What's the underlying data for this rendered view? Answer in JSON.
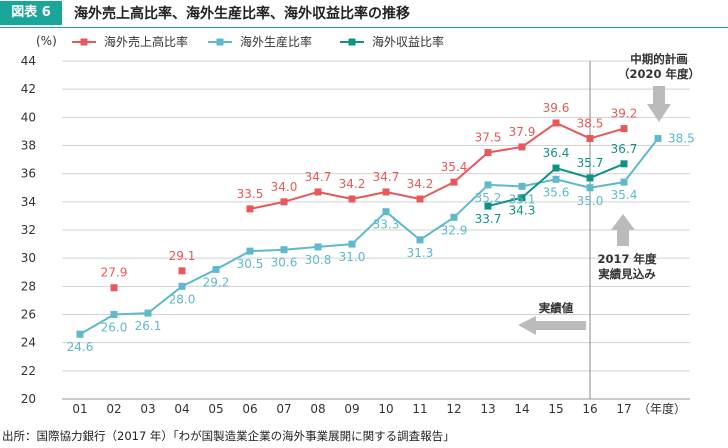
{
  "figure": {
    "badge": "図表 6",
    "title": "海外売上高比率、海外生産比率、海外収益比率の推移",
    "source": "出所：国際協力銀行（2017 年）「わが国製造業企業の海外事業展開に関する調査報告」"
  },
  "colors": {
    "accent": "#1aa69a",
    "sales": "#e8585a",
    "production": "#5fb9cc",
    "profit": "#0f9385",
    "grid": "#d2d2d2"
  },
  "annotations": {
    "plan_line1": "中期的計画",
    "plan_line2": "（2020 年度）",
    "estimate_line1": "2017 年度",
    "estimate_line2": "実績見込み",
    "actual": "実績値"
  },
  "chart_data": {
    "type": "line",
    "title": "",
    "xlabel": "（年度）",
    "ylabel": "(%)",
    "ylim": [
      20,
      44
    ],
    "ytick_step": 2,
    "grid": true,
    "legend_position": "top",
    "categories": [
      "01",
      "02",
      "03",
      "04",
      "05",
      "06",
      "07",
      "08",
      "09",
      "10",
      "11",
      "12",
      "13",
      "14",
      "15",
      "16",
      "17",
      ""
    ],
    "series": [
      {
        "name": "海外売上高比率",
        "color": "#e8585a",
        "values": [
          null,
          27.9,
          null,
          29.1,
          null,
          33.5,
          34.0,
          34.7,
          34.2,
          34.7,
          34.2,
          35.4,
          37.5,
          37.9,
          39.6,
          38.5,
          39.2,
          null
        ],
        "labels": [
          "",
          "27.9",
          "",
          "29.1",
          "",
          "33.5",
          "34.0",
          "34.7",
          "34.2",
          "34.7",
          "34.2",
          "35.4",
          "37.5",
          "37.9",
          "39.6",
          "38.5",
          "39.2",
          ""
        ]
      },
      {
        "name": "海外生産比率",
        "color": "#5fb9cc",
        "values": [
          24.6,
          26.0,
          26.1,
          28.0,
          29.2,
          30.5,
          30.6,
          30.8,
          31.0,
          33.3,
          31.3,
          32.9,
          35.2,
          35.1,
          35.6,
          35.0,
          35.4,
          38.5
        ],
        "labels": [
          "24.6",
          "26.0",
          "26.1",
          "28.0",
          "29.2",
          "30.5",
          "30.6",
          "30.8",
          "31.0",
          "33.3",
          "31.3",
          "32.9",
          "35.2",
          "35.1",
          "35.6",
          "35.0",
          "35.4",
          "38.5"
        ]
      },
      {
        "name": "海外収益比率",
        "color": "#0f9385",
        "values": [
          null,
          null,
          null,
          null,
          null,
          null,
          null,
          null,
          null,
          null,
          null,
          null,
          33.7,
          34.3,
          36.4,
          35.7,
          36.7,
          null
        ],
        "labels": [
          "",
          "",
          "",
          "",
          "",
          "",
          "",
          "",
          "",
          "",
          "",
          "",
          "33.7",
          "34.3",
          "36.4",
          "35.7",
          "36.7",
          ""
        ]
      }
    ]
  }
}
